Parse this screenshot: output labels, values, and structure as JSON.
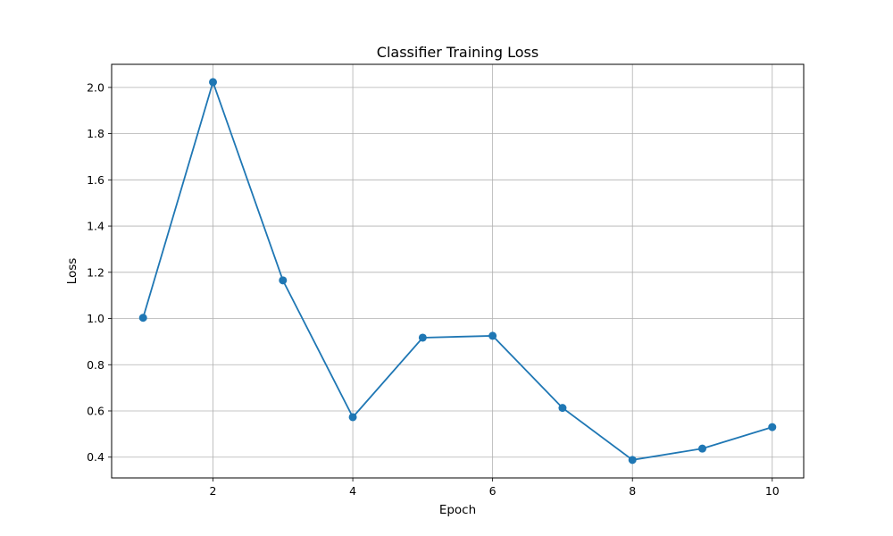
{
  "chart_data": {
    "type": "line",
    "title": "Classifier Training Loss",
    "xlabel": "Epoch",
    "ylabel": "Loss",
    "x": [
      1,
      2,
      3,
      4,
      5,
      6,
      7,
      8,
      9,
      10
    ],
    "series": [
      {
        "values": [
          1.003,
          2.023,
          1.165,
          0.573,
          0.917,
          0.925,
          0.613,
          0.388,
          0.437,
          0.53
        ],
        "color": "#1f77b4",
        "marker": "circle"
      }
    ],
    "xlim": [
      0.55,
      10.45
    ],
    "ylim": [
      0.31,
      2.1
    ],
    "xticks": [
      2,
      4,
      6,
      8,
      10
    ],
    "xtick_labels": [
      "2",
      "4",
      "6",
      "8",
      "10"
    ],
    "yticks": [
      0.4,
      0.6,
      0.8,
      1.0,
      1.2,
      1.4,
      1.6,
      1.8,
      2.0
    ],
    "ytick_labels": [
      "0.4",
      "0.6",
      "0.8",
      "1.0",
      "1.2",
      "1.4",
      "1.6",
      "1.8",
      "2.0"
    ],
    "grid": true,
    "legend": "none"
  }
}
